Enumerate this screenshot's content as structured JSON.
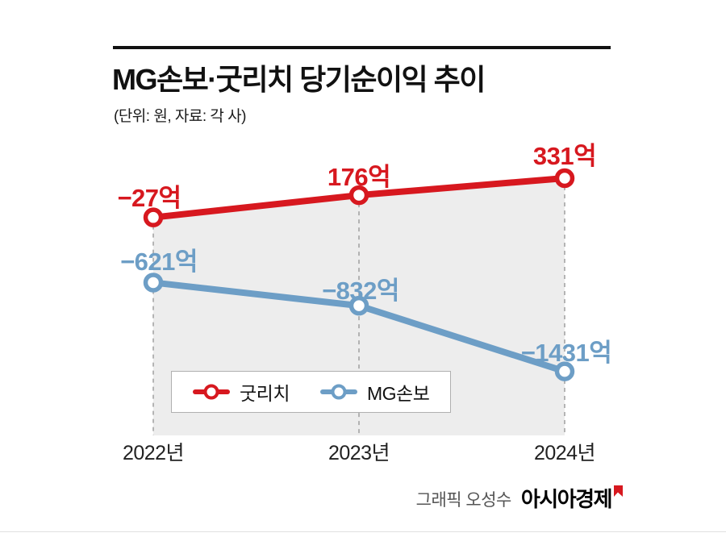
{
  "header": {
    "title": "MG손보·굿리치 당기순이익 추이",
    "subtitle": "(단위: 원, 자료: 각 사)"
  },
  "chart_data": {
    "type": "line",
    "title": "MG손보·굿리치 당기순이익 추이",
    "unit": "억 (hundred million won)",
    "categories": [
      "2022년",
      "2023년",
      "2024년"
    ],
    "series": [
      {
        "name": "굿리치",
        "color": "#d7181f",
        "values": [
          -27,
          176,
          331
        ],
        "point_labels": [
          "−27억",
          "176억",
          "331억"
        ]
      },
      {
        "name": "MG손보",
        "color": "#6d9ec6",
        "values": [
          -621,
          -832,
          -1431
        ],
        "point_labels": [
          "−621억",
          "−832억",
          "−1431억"
        ]
      }
    ],
    "legend_position": "inside-bottom-left",
    "grid": "dashed-vertical-per-category",
    "area_fill_under_series": "굿리치",
    "area_fill_color": "#ededed"
  },
  "footer": {
    "credit": "그래픽 오성수",
    "brand": "아시아경제"
  }
}
